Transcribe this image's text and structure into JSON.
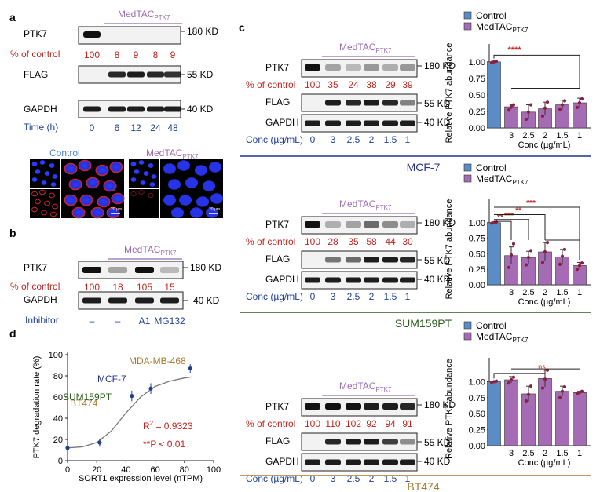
{
  "panel_labels": {
    "a": "a",
    "b": "b",
    "c": "c",
    "d": "d"
  },
  "common": {
    "medtac": "MedTAC",
    "medtac_sub": "PTK7",
    "ptk7": "PTK7",
    "flag": "FLAG",
    "gapdh": "GAPDH",
    "pct_control": "% of control",
    "kd180": "180 KD",
    "kd55": "55 KD",
    "kd40": "40 KD",
    "conc_label": "Conc (µg/mL)"
  },
  "panel_a": {
    "pct_values": [
      "100",
      "8",
      "9",
      "8",
      "9"
    ],
    "time_label": "Time (h)",
    "time_values": [
      "0",
      "6",
      "12",
      "24",
      "48"
    ],
    "img_control": "Control",
    "img_medtac": "MedTAC",
    "img_medtac_sub": "PTK7",
    "scale_bar": "20 µm"
  },
  "panel_b": {
    "pct_values": [
      "100",
      "18",
      "105",
      "15"
    ],
    "inhibitor_label": "Inhibitor:",
    "inhibitor_values": [
      "–",
      "–",
      "A1",
      "MG132"
    ]
  },
  "panel_c": {
    "conc_values": [
      "0",
      "3",
      "2.5",
      "2",
      "1.5",
      "1"
    ],
    "blots": [
      {
        "cell_line": "MCF-7",
        "pct_values": [
          "100",
          "35",
          "24",
          "38",
          "29",
          "39"
        ]
      },
      {
        "cell_line": "SUM159PT",
        "pct_values": [
          "100",
          "28",
          "35",
          "58",
          "44",
          "30"
        ]
      },
      {
        "cell_line": "BT474",
        "pct_values": [
          "100",
          "110",
          "102",
          "92",
          "94",
          "91"
        ]
      }
    ],
    "chart_data": [
      {
        "type": "bar",
        "cell_line": "MCF-7",
        "ylabel": "Relative PTK7 abundance",
        "xlabel": "Conc (µg/mL)",
        "categories": [
          "Control",
          "3",
          "2.5",
          "2",
          "1.5",
          "1"
        ],
        "values": [
          1.0,
          0.32,
          0.24,
          0.29,
          0.35,
          0.38
        ],
        "errors": [
          0.01,
          0.04,
          0.11,
          0.1,
          0.07,
          0.07
        ],
        "points": [
          [
            0.99,
            1.0,
            1.01
          ],
          [
            0.27,
            0.33,
            0.35
          ],
          [
            0.13,
            0.24,
            0.35
          ],
          [
            0.18,
            0.3,
            0.39
          ],
          [
            0.28,
            0.35,
            0.41
          ],
          [
            0.31,
            0.38,
            0.44
          ]
        ],
        "ylim": [
          0,
          1.2
        ],
        "yticks": [
          "0.00",
          "0.25",
          "0.50",
          "0.75",
          "1.00"
        ],
        "legend": [
          "Control",
          "MedTAC"
        ],
        "legend_sub": [
          "",
          "PTK7"
        ],
        "significance": [
          "****"
        ]
      },
      {
        "type": "bar",
        "cell_line": "SUM159PT",
        "ylabel": "Relative PTK7 abundance",
        "xlabel": "Conc (µg/mL)",
        "categories": [
          "Control",
          "3",
          "2.5",
          "2",
          "1.5",
          "1"
        ],
        "values": [
          1.0,
          0.47,
          0.44,
          0.53,
          0.45,
          0.31
        ],
        "errors": [
          0.01,
          0.14,
          0.1,
          0.15,
          0.12,
          0.05
        ],
        "points": [
          [
            0.99,
            1.0,
            1.01
          ],
          [
            0.28,
            0.48,
            0.66
          ],
          [
            0.32,
            0.44,
            0.55
          ],
          [
            0.36,
            0.53,
            0.68
          ],
          [
            0.33,
            0.46,
            0.57
          ],
          [
            0.25,
            0.31,
            0.35
          ]
        ],
        "ylim": [
          0,
          1.3
        ],
        "yticks": [
          "0.00",
          "0.25",
          "0.50",
          "0.75",
          "1.00"
        ],
        "legend": [
          "Control",
          "MedTAC"
        ],
        "legend_sub": [
          "",
          "PTK7"
        ],
        "significance": [
          "**",
          "***",
          "**",
          "***"
        ]
      },
      {
        "type": "bar",
        "cell_line": "BT474",
        "ylabel": "Relative PTK7 abundance",
        "xlabel": "Conc (µg/mL)",
        "categories": [
          "Control",
          "3",
          "2.5",
          "2",
          "1.5",
          "1"
        ],
        "values": [
          1.0,
          1.03,
          0.81,
          1.05,
          0.85,
          0.83
        ],
        "errors": [
          0.01,
          0.05,
          0.12,
          0.13,
          0.08,
          0.02
        ],
        "points": [
          [
            0.99,
            1.0,
            1.01
          ],
          [
            0.98,
            1.03,
            1.07
          ],
          [
            0.7,
            0.8,
            0.93
          ],
          [
            0.9,
            1.04,
            1.18
          ],
          [
            0.75,
            0.85,
            0.92
          ],
          [
            0.81,
            0.83,
            0.85
          ]
        ],
        "ylim": [
          0,
          1.3
        ],
        "yticks": [
          "0.00",
          "0.25",
          "0.50",
          "0.75",
          "1.00"
        ],
        "legend": [
          "Control",
          "MedTAC"
        ],
        "legend_sub": [
          "",
          "PTK7"
        ],
        "significance": [
          "ns"
        ]
      }
    ]
  },
  "panel_d": {
    "chart_data": {
      "type": "scatter",
      "xlabel": "SORT1 expression level (nTPM)",
      "ylabel": "PTK7 degradation rate (%)",
      "xlim": [
        0,
        100
      ],
      "ylim": [
        0,
        100
      ],
      "xticks": [
        "0",
        "20",
        "40",
        "60",
        "80",
        "100"
      ],
      "yticks": [
        "0",
        "20",
        "40",
        "60",
        "80",
        "100"
      ],
      "x": [
        0,
        22,
        44,
        57,
        84
      ],
      "y": [
        12,
        17,
        61,
        68,
        87
      ],
      "errors": [
        1,
        4,
        5,
        5,
        4
      ],
      "fit_x": [
        0,
        10,
        20,
        30,
        40,
        50,
        60,
        70,
        80,
        85
      ],
      "fit_y": [
        12,
        13,
        17,
        28,
        45,
        60,
        70,
        75,
        78,
        79
      ],
      "labels": [
        "BT474",
        "SUM159PT",
        "MCF-7",
        "MDA-MB-468"
      ],
      "r2": "R",
      "r2_sup": "2",
      "r2_val": " = 0.9323",
      "pval": "**P < 0.01"
    }
  },
  "colors": {
    "red": "#c0261f",
    "blue": "#1f3f95",
    "purple": "#9b6bb0",
    "bar_control": "#5b8cc5",
    "bar_med": "#a56bb5",
    "mcf7": "#23338c",
    "sum159": "#2b5d1c",
    "bt474": "#a9782e"
  }
}
